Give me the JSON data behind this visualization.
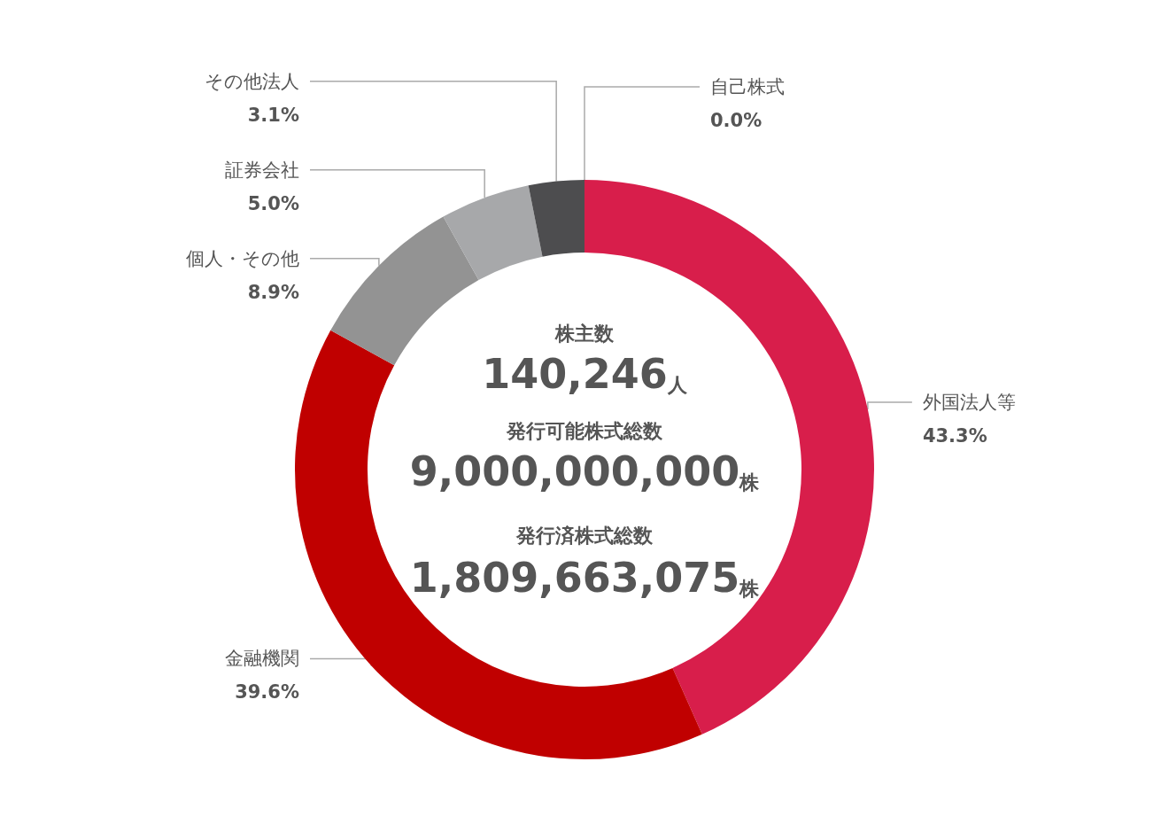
{
  "chart_data": {
    "type": "donut",
    "categories": [
      "外国法人等",
      "金融機関",
      "個人・その他",
      "証券会社",
      "その他法人",
      "自己株式"
    ],
    "values": [
      43.3,
      39.6,
      8.9,
      5.0,
      3.1,
      0.0
    ],
    "colors": [
      "#d81e4b",
      "#c00000",
      "#939393",
      "#a7a8aa",
      "#4d4d4f",
      "#3a3a3c"
    ],
    "value_labels": [
      "43.3%",
      "39.6%",
      "8.9%",
      "5.0%",
      "3.1%",
      "0.0%"
    ],
    "annotations": [
      "株主数",
      "140,246人",
      "発行可能株式総数",
      "9,000,000,000株",
      "発行済株式総数",
      "1,809,663,075株"
    ]
  }
}
